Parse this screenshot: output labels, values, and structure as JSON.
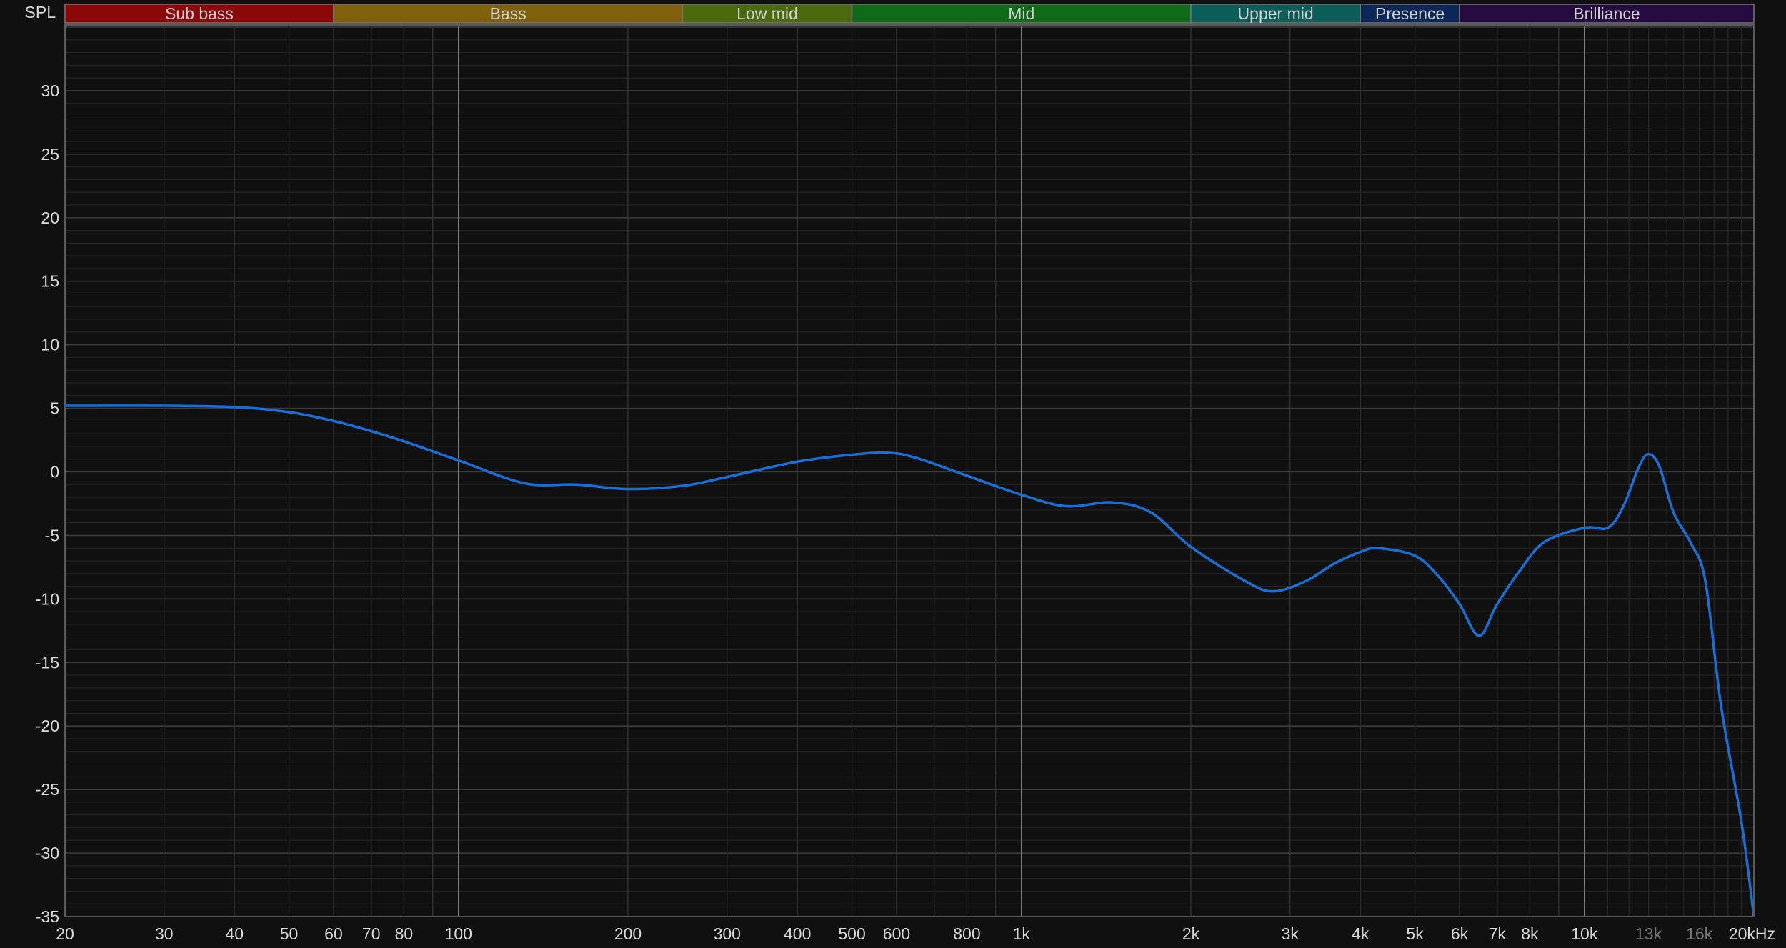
{
  "chart_data": {
    "type": "line",
    "ylabel": "SPL",
    "x_scale": "log",
    "xlim": [
      20,
      20000
    ],
    "ylim": [
      -35,
      35
    ],
    "grid": true,
    "x_ticks": [
      {
        "value": 20,
        "label": "20"
      },
      {
        "value": 30,
        "label": "30"
      },
      {
        "value": 40,
        "label": "40"
      },
      {
        "value": 50,
        "label": "50"
      },
      {
        "value": 60,
        "label": "60"
      },
      {
        "value": 70,
        "label": "70"
      },
      {
        "value": 80,
        "label": "80"
      },
      {
        "value": 100,
        "label": "100"
      },
      {
        "value": 200,
        "label": "200"
      },
      {
        "value": 300,
        "label": "300"
      },
      {
        "value": 400,
        "label": "400"
      },
      {
        "value": 500,
        "label": "500"
      },
      {
        "value": 600,
        "label": "600"
      },
      {
        "value": 800,
        "label": "800"
      },
      {
        "value": 1000,
        "label": "1k"
      },
      {
        "value": 2000,
        "label": "2k"
      },
      {
        "value": 3000,
        "label": "3k"
      },
      {
        "value": 4000,
        "label": "4k"
      },
      {
        "value": 5000,
        "label": "5k"
      },
      {
        "value": 6000,
        "label": "6k"
      },
      {
        "value": 7000,
        "label": "7k"
      },
      {
        "value": 8000,
        "label": "8k"
      },
      {
        "value": 10000,
        "label": "10k"
      },
      {
        "value": 13000,
        "label": "13k",
        "dim": true
      },
      {
        "value": 16000,
        "label": "16k",
        "dim": true
      },
      {
        "value": 20000,
        "label": "20kHz"
      }
    ],
    "y_ticks": [
      30,
      25,
      20,
      15,
      10,
      5,
      0,
      -5,
      -10,
      -15,
      -20,
      -25,
      -30,
      -35
    ],
    "bands": [
      {
        "label": "Sub bass",
        "from": 20,
        "to": 60,
        "color": "#8a0808"
      },
      {
        "label": "Bass",
        "from": 60,
        "to": 250,
        "color": "#80600a"
      },
      {
        "label": "Low mid",
        "from": 250,
        "to": 500,
        "color": "#4b6a0e"
      },
      {
        "label": "Mid",
        "from": 500,
        "to": 2000,
        "color": "#0e6a16"
      },
      {
        "label": "Upper mid",
        "from": 2000,
        "to": 4000,
        "color": "#0b5e57"
      },
      {
        "label": "Presence",
        "from": 4000,
        "to": 6000,
        "color": "#0a2758"
      },
      {
        "label": "Brilliance",
        "from": 6000,
        "to": 20000,
        "color": "#250a40"
      }
    ],
    "series": [
      {
        "color": "#1a6fd6",
        "points": [
          [
            20,
            5.2
          ],
          [
            30,
            5.2
          ],
          [
            40,
            5.1
          ],
          [
            50,
            4.7
          ],
          [
            60,
            4.0
          ],
          [
            70,
            3.2
          ],
          [
            80,
            2.4
          ],
          [
            100,
            0.9
          ],
          [
            131,
            -0.9
          ],
          [
            162,
            -1.0
          ],
          [
            200,
            -1.35
          ],
          [
            250,
            -1.1
          ],
          [
            300,
            -0.4
          ],
          [
            400,
            0.8
          ],
          [
            500,
            1.35
          ],
          [
            580,
            1.5
          ],
          [
            650,
            1.1
          ],
          [
            800,
            -0.3
          ],
          [
            1000,
            -1.8
          ],
          [
            1200,
            -2.7
          ],
          [
            1450,
            -2.4
          ],
          [
            1700,
            -3.2
          ],
          [
            2000,
            -5.9
          ],
          [
            2500,
            -8.6
          ],
          [
            2800,
            -9.4
          ],
          [
            3200,
            -8.6
          ],
          [
            3600,
            -7.2
          ],
          [
            4000,
            -6.3
          ],
          [
            4300,
            -6.0
          ],
          [
            5000,
            -6.6
          ],
          [
            5500,
            -8.2
          ],
          [
            6000,
            -10.4
          ],
          [
            6500,
            -12.9
          ],
          [
            7000,
            -10.4
          ],
          [
            7700,
            -7.7
          ],
          [
            8500,
            -5.5
          ],
          [
            10000,
            -4.4
          ],
          [
            11000,
            -4.4
          ],
          [
            11700,
            -2.8
          ],
          [
            12500,
            0.4
          ],
          [
            13000,
            1.4
          ],
          [
            13600,
            0.4
          ],
          [
            14400,
            -3.2
          ],
          [
            15500,
            -5.7
          ],
          [
            16400,
            -8.6
          ],
          [
            17500,
            -18.5
          ],
          [
            19000,
            -27.5
          ],
          [
            20000,
            -35
          ]
        ]
      }
    ]
  }
}
